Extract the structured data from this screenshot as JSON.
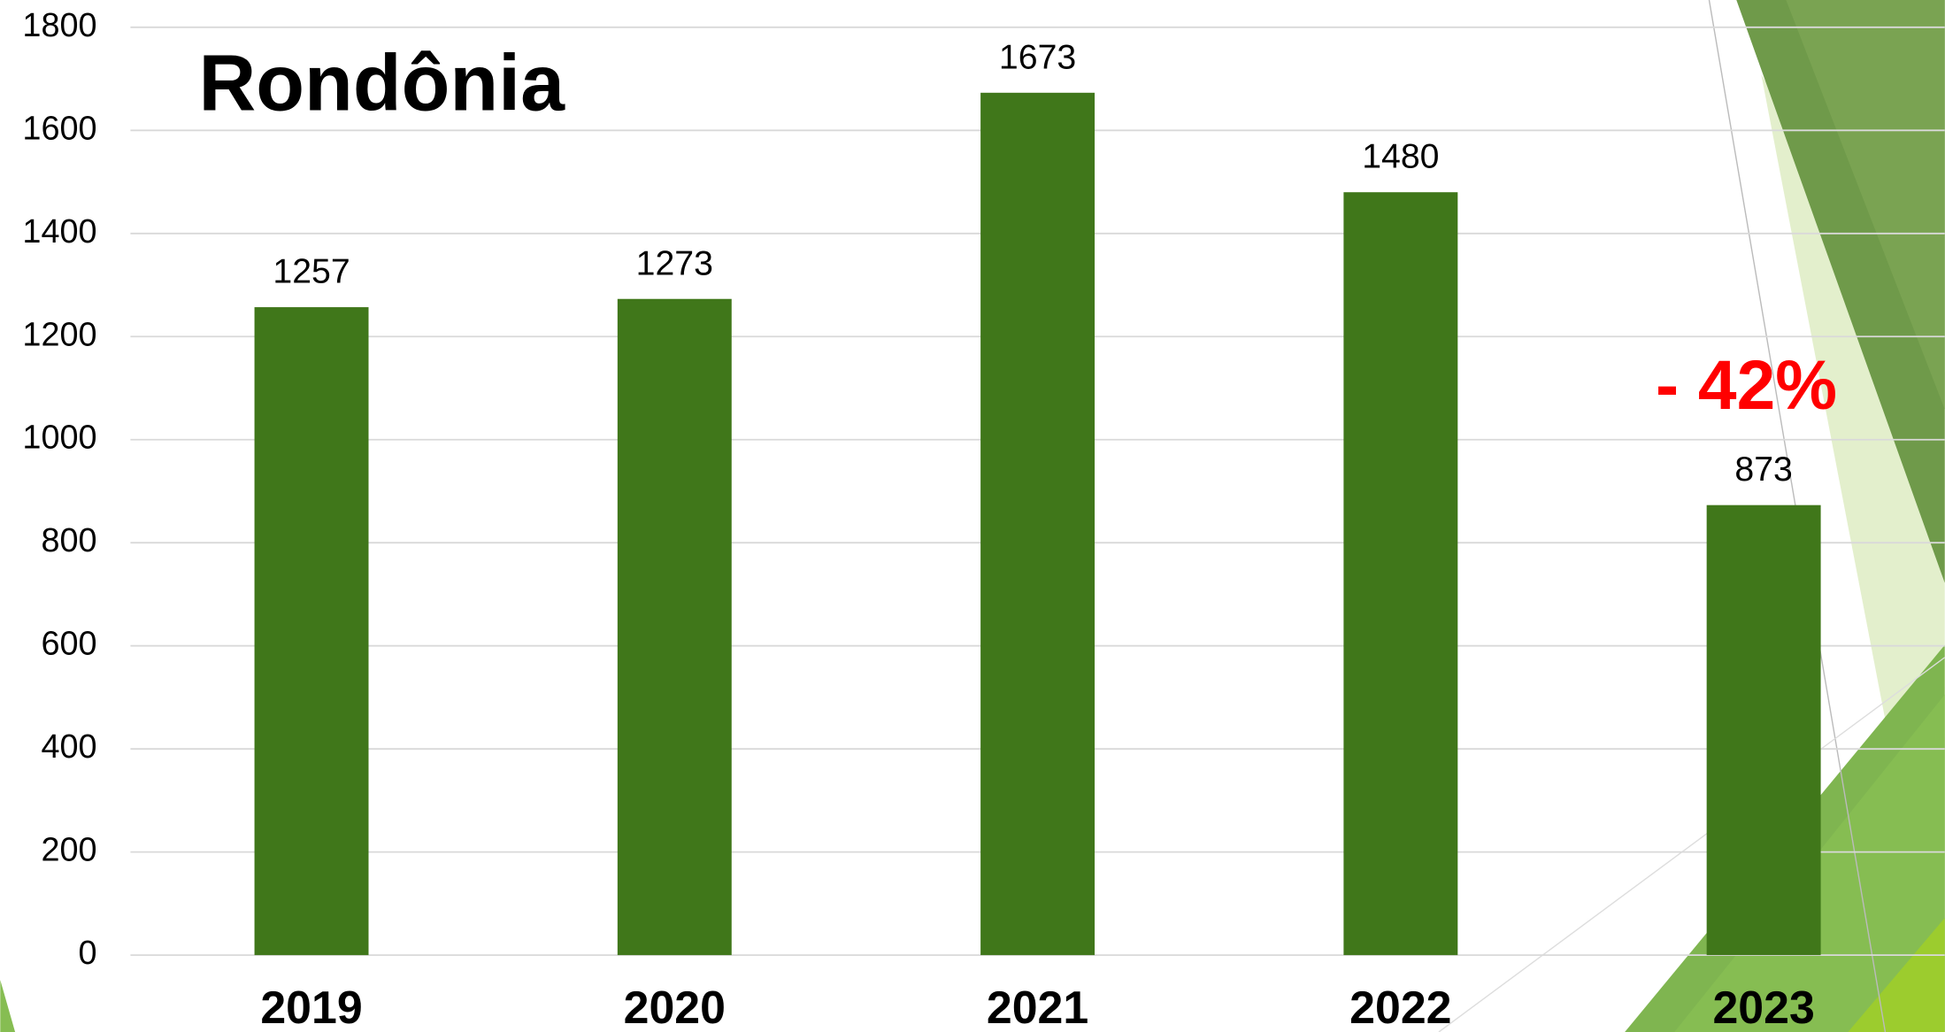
{
  "chart_data": {
    "type": "bar",
    "title": "Rondônia",
    "categories": [
      "2019",
      "2020",
      "2021",
      "2022",
      "2023"
    ],
    "values": [
      1257,
      1273,
      1673,
      1480,
      873
    ],
    "color": "#40771a",
    "ylim": [
      0,
      1800
    ],
    "yticks": [
      0,
      200,
      400,
      600,
      800,
      1000,
      1200,
      1400,
      1600,
      1800
    ],
    "grid": true,
    "annotation": "- 42%"
  }
}
